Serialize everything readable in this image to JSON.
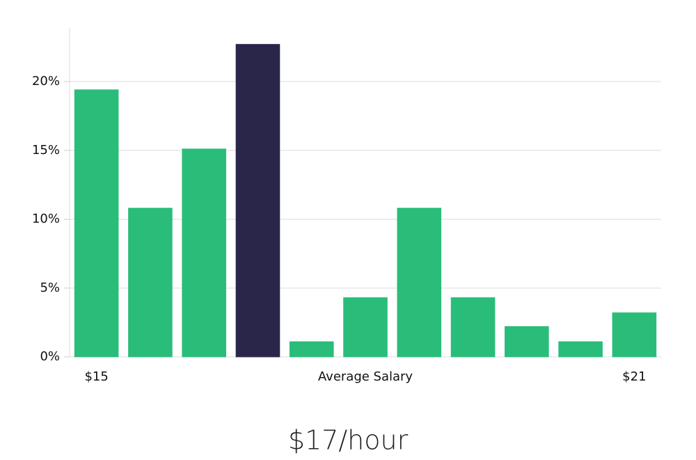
{
  "chart_data": {
    "type": "bar",
    "categories": [
      "$15",
      null,
      null,
      null,
      null,
      null,
      null,
      null,
      null,
      null,
      "$21"
    ],
    "values": [
      19.4,
      10.8,
      15.1,
      22.7,
      1.1,
      4.3,
      10.8,
      4.3,
      2.2,
      1.1,
      3.2
    ],
    "colors": [
      "#2abd7a",
      "#2abd7a",
      "#2abd7a",
      "#29264a",
      "#2abd7a",
      "#2abd7a",
      "#2abd7a",
      "#2abd7a",
      "#2abd7a",
      "#2abd7a",
      "#2abd7a"
    ],
    "x_label": "Average Salary",
    "subtitle": "$17/hour",
    "ylim": [
      0,
      24
    ],
    "yticks": [
      {
        "value": 0,
        "label": "0%"
      },
      {
        "value": 5,
        "label": "5%"
      },
      {
        "value": 10,
        "label": "10%"
      },
      {
        "value": 15,
        "label": "15%"
      },
      {
        "value": 20,
        "label": "20%"
      }
    ],
    "grid": true
  }
}
